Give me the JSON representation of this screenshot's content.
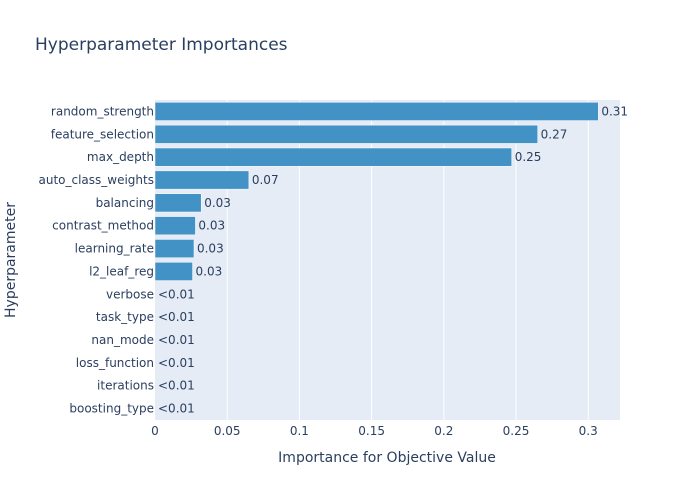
{
  "chart_data": {
    "type": "bar",
    "orientation": "horizontal",
    "title": "Hyperparameter Importances",
    "xlabel": "Importance for Objective Value",
    "ylabel": "Hyperparameter",
    "xlim": [
      0,
      0.322
    ],
    "x_ticks": [
      "0",
      "0.05",
      "0.1",
      "0.15",
      "0.2",
      "0.25",
      "0.3"
    ],
    "x_tick_values": [
      0,
      0.05,
      0.1,
      0.15,
      0.2,
      0.25,
      0.3
    ],
    "grid": true,
    "bar_color": "#4292c6",
    "plot_bg": "#e5ecf6",
    "categories": [
      "random_strength",
      "feature_selection",
      "max_depth",
      "auto_class_weights",
      "balancing",
      "contrast_method",
      "learning_rate",
      "l2_leaf_reg",
      "verbose",
      "task_type",
      "nan_mode",
      "loss_function",
      "iterations",
      "boosting_type"
    ],
    "values": [
      0.307,
      0.265,
      0.247,
      0.065,
      0.032,
      0.028,
      0.027,
      0.026,
      0,
      0,
      0,
      0,
      0,
      0
    ],
    "labels": [
      "0.31",
      "0.27",
      "0.25",
      "0.07",
      "0.03",
      "0.03",
      "0.03",
      "0.03",
      "<0.01",
      "<0.01",
      "<0.01",
      "<0.01",
      "<0.01",
      "<0.01"
    ]
  }
}
